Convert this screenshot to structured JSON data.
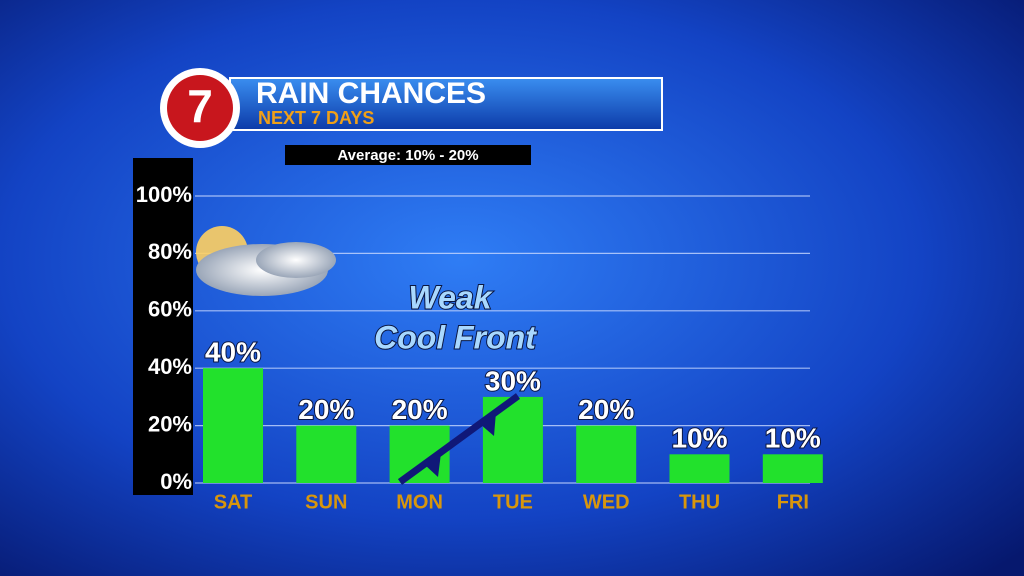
{
  "logo": "7",
  "header": {
    "title": "RAIN CHANCES",
    "subtitle": "NEXT 7 DAYS",
    "average": "Average: 10% - 20%"
  },
  "chart_data": {
    "type": "bar",
    "categories": [
      "SAT",
      "SUN",
      "MON",
      "TUE",
      "WED",
      "THU",
      "FRI"
    ],
    "values": [
      40,
      20,
      20,
      30,
      20,
      10,
      10
    ],
    "value_labels": [
      "40%",
      "20%",
      "20%",
      "30%",
      "20%",
      "10%",
      "10%"
    ],
    "color": "#22e12c",
    "ylim": [
      0,
      100
    ],
    "yticks": [
      {
        "value": 0,
        "label": "0%"
      },
      {
        "value": 20,
        "label": "20%"
      },
      {
        "value": 40,
        "label": "40%"
      },
      {
        "value": 60,
        "label": "60%"
      },
      {
        "value": 80,
        "label": "80%"
      },
      {
        "value": 100,
        "label": "100%"
      }
    ],
    "grid": true,
    "annotations": [
      "Weak",
      "Cool Front"
    ]
  }
}
